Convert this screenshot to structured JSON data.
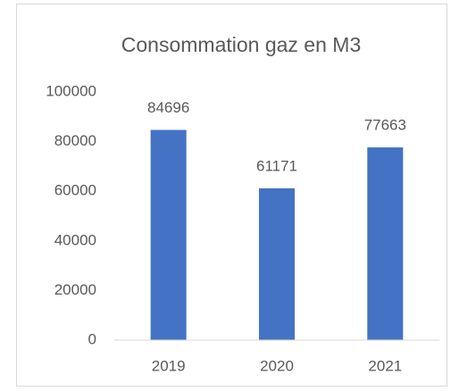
{
  "chart_data": {
    "type": "bar",
    "title": "Consommation gaz en M3",
    "categories": [
      "2019",
      "2020",
      "2021"
    ],
    "values": [
      84696,
      61171,
      77663
    ],
    "color": "#4472c4",
    "ylim": [
      0,
      100000
    ],
    "yticks": [
      0,
      20000,
      40000,
      60000,
      80000,
      100000
    ],
    "grid": false,
    "data_labels": true
  }
}
